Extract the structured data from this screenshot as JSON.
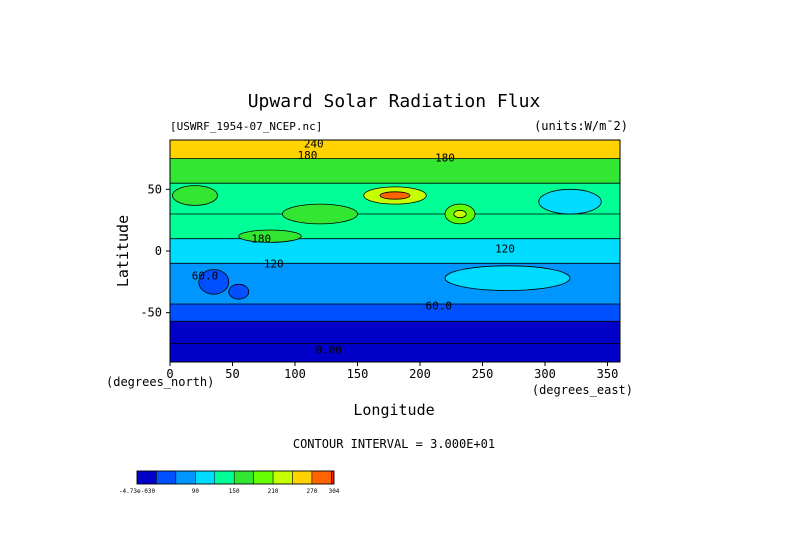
{
  "chart_data": {
    "type": "heatmap",
    "title": "Upward Solar Radiation Flux",
    "dataset": "[USWRF_1954-07_NCEP.nc]",
    "units": "(units:W/m^-2)",
    "units_display": "(units:W/m¯2)",
    "xlabel": "Longitude",
    "ylabel": "Latitude",
    "x_unit_label": "(degrees_east)",
    "y_unit_label": "(degrees_north)",
    "xlim": [
      0,
      360
    ],
    "ylim": [
      -90,
      90
    ],
    "x_ticks": [
      0,
      50,
      100,
      150,
      200,
      250,
      300,
      350
    ],
    "y_ticks": [
      -50,
      0,
      50
    ],
    "contour_interval_text": "CONTOUR INTERVAL = 3.000E+01",
    "colorbar": {
      "levels": [
        -4.73e-30,
        30,
        60,
        90,
        120,
        150,
        180,
        210,
        240,
        270,
        300,
        304
      ],
      "tick_labels": [
        "-4.73e-030",
        "90",
        "150",
        "210",
        "270",
        "304"
      ],
      "tick_values": [
        -4.73e-30,
        90,
        150,
        210,
        270,
        304
      ],
      "colors": [
        "#0000c8",
        "#0050ff",
        "#0096ff",
        "#00dcff",
        "#00ff96",
        "#32e632",
        "#64ff00",
        "#c8ff00",
        "#ffd200",
        "#ff6400",
        "#ff1e00"
      ]
    },
    "bands": [
      {
        "lat_from": -90,
        "lat_to": -75,
        "value": 0
      },
      {
        "lat_from": -75,
        "lat_to": -57,
        "value": 15
      },
      {
        "lat_from": -57,
        "lat_to": -43,
        "value": 45
      },
      {
        "lat_from": -43,
        "lat_to": -10,
        "value": 75
      },
      {
        "lat_from": -10,
        "lat_to": 10,
        "value": 105
      },
      {
        "lat_from": 10,
        "lat_to": 30,
        "value": 135
      },
      {
        "lat_from": 30,
        "lat_to": 55,
        "value": 135
      },
      {
        "lat_from": 55,
        "lat_to": 75,
        "value": 165
      },
      {
        "lat_from": 75,
        "lat_to": 90,
        "value": 255
      }
    ],
    "patches": [
      {
        "lon": 180,
        "lat": 45,
        "rx": 25,
        "ry": 7,
        "value": 225
      },
      {
        "lon": 180,
        "lat": 45,
        "rx": 12,
        "ry": 3,
        "value": 285
      },
      {
        "lon": 232,
        "lat": 30,
        "rx": 12,
        "ry": 8,
        "value": 195
      },
      {
        "lon": 232,
        "lat": 30,
        "rx": 5,
        "ry": 3,
        "value": 225
      },
      {
        "lon": 35,
        "lat": -25,
        "rx": 12,
        "ry": 10,
        "value": 45
      },
      {
        "lon": 55,
        "lat": -33,
        "rx": 8,
        "ry": 6,
        "value": 45
      },
      {
        "lon": 270,
        "lat": -22,
        "rx": 50,
        "ry": 10,
        "value": 105
      },
      {
        "lon": 20,
        "lat": 45,
        "rx": 18,
        "ry": 8,
        "value": 165
      },
      {
        "lon": 320,
        "lat": 40,
        "rx": 25,
        "ry": 10,
        "value": 105
      },
      {
        "lon": 120,
        "lat": 30,
        "rx": 30,
        "ry": 8,
        "value": 165
      },
      {
        "lon": 80,
        "lat": 12,
        "rx": 25,
        "ry": 5,
        "value": 165
      }
    ],
    "contour_labels": [
      {
        "text": "0.00",
        "lon": 127,
        "lat": -80
      },
      {
        "text": "60.0",
        "lon": 215,
        "lat": -44
      },
      {
        "text": "60.0",
        "lon": 28,
        "lat": -20
      },
      {
        "text": "120",
        "lon": 83,
        "lat": -10
      },
      {
        "text": "180",
        "lon": 73,
        "lat": 10
      },
      {
        "text": "120",
        "lon": 268,
        "lat": 2
      },
      {
        "text": "180",
        "lon": 220,
        "lat": 76
      },
      {
        "text": "180",
        "lon": 110,
        "lat": 78
      },
      {
        "text": "240",
        "lon": 115,
        "lat": 87
      }
    ]
  }
}
